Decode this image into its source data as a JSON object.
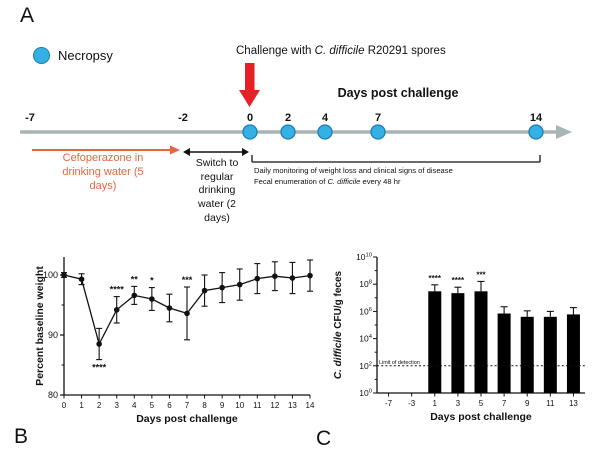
{
  "figure": {
    "panel_a_label": "A",
    "panel_b_label": "B",
    "panel_c_label": "C"
  },
  "panelA": {
    "legend_label": "Necropsy",
    "challenge": {
      "prefix": "Challenge with ",
      "italic": "C. difficile",
      "suffix": " R20291 spores"
    },
    "days_post_challenge_label": "Days post challenge",
    "timeline_ticks": [
      "-7",
      "-2",
      "0",
      "2",
      "4",
      "7",
      "14"
    ],
    "necropsy_days": [
      "0",
      "2",
      "4",
      "7",
      "14"
    ],
    "cefoperazone_label": "Cefoperazone in drinking water (5 days)",
    "switch_label": "Switch to regular drinking water (2 days)",
    "monitoring_line1": "Daily monitoring of weight loss and clinical signs of disease",
    "monitoring_line2": {
      "prefix": "Fecal enumeration of ",
      "italic": "C. difficile",
      "suffix": " every 48 hr"
    },
    "colors": {
      "necropsy_fill": "#35b0e5",
      "necropsy_stroke": "#1a7fb5",
      "challenge_arrow": "#e32126",
      "cefoperazone": "#e8663f",
      "timeline": "#a9b4b4"
    }
  },
  "chart_data": [
    {
      "id": "panelB",
      "type": "line",
      "title": "",
      "xlabel": "Days post challenge",
      "ylabel": "Percent baseline weight",
      "x": [
        0,
        1,
        2,
        3,
        4,
        5,
        6,
        7,
        8,
        9,
        10,
        11,
        12,
        13,
        14
      ],
      "values": [
        100,
        99.3,
        88.5,
        94.2,
        96.6,
        96.0,
        94.5,
        93.6,
        97.4,
        97.9,
        98.4,
        99.4,
        99.8,
        99.5,
        99.9
      ],
      "errors": [
        0.4,
        0.9,
        2.6,
        2.2,
        1.5,
        1.9,
        2.3,
        4.4,
        2.6,
        2.5,
        2.6,
        2.5,
        2.4,
        2.6,
        2.6
      ],
      "ylim": [
        80,
        100
      ],
      "yticks": [
        80,
        90,
        100
      ],
      "yticks_minor": [
        85,
        95
      ],
      "significance": [
        {
          "x": 2,
          "label": "****",
          "position": "below"
        },
        {
          "x": 3,
          "label": "****",
          "position": "above"
        },
        {
          "x": 4,
          "label": "**",
          "position": "above"
        },
        {
          "x": 5,
          "label": "*",
          "position": "above"
        },
        {
          "x": 7,
          "label": "***",
          "position": "above"
        }
      ]
    },
    {
      "id": "panelC",
      "type": "bar",
      "title": "",
      "xlabel": "Days post challenge",
      "ylabel_italic": "C. difficile",
      "ylabel_rest": " CFU/g feces",
      "categories": [
        "-7",
        "-3",
        "1",
        "3",
        "5",
        "7",
        "9",
        "11",
        "13"
      ],
      "values": [
        null,
        null,
        30000000.0,
        22000000.0,
        30000000.0,
        700000.0,
        400000.0,
        400000.0,
        600000.0
      ],
      "upper_errors": [
        null,
        null,
        90000000.0,
        60000000.0,
        160000000.0,
        2200000.0,
        1100000.0,
        1000000.0,
        1900000.0
      ],
      "yscale": "log",
      "ylim_exponents": [
        0,
        10
      ],
      "ytick_exponents": [
        0,
        2,
        4,
        6,
        8,
        10
      ],
      "limit_of_detection": {
        "value": 100,
        "label": "Limit of detection"
      },
      "significance": [
        {
          "x": "1",
          "label": "****"
        },
        {
          "x": "3",
          "label": "****"
        },
        {
          "x": "5",
          "label": "***"
        }
      ],
      "bar_color": "#000000"
    }
  ]
}
